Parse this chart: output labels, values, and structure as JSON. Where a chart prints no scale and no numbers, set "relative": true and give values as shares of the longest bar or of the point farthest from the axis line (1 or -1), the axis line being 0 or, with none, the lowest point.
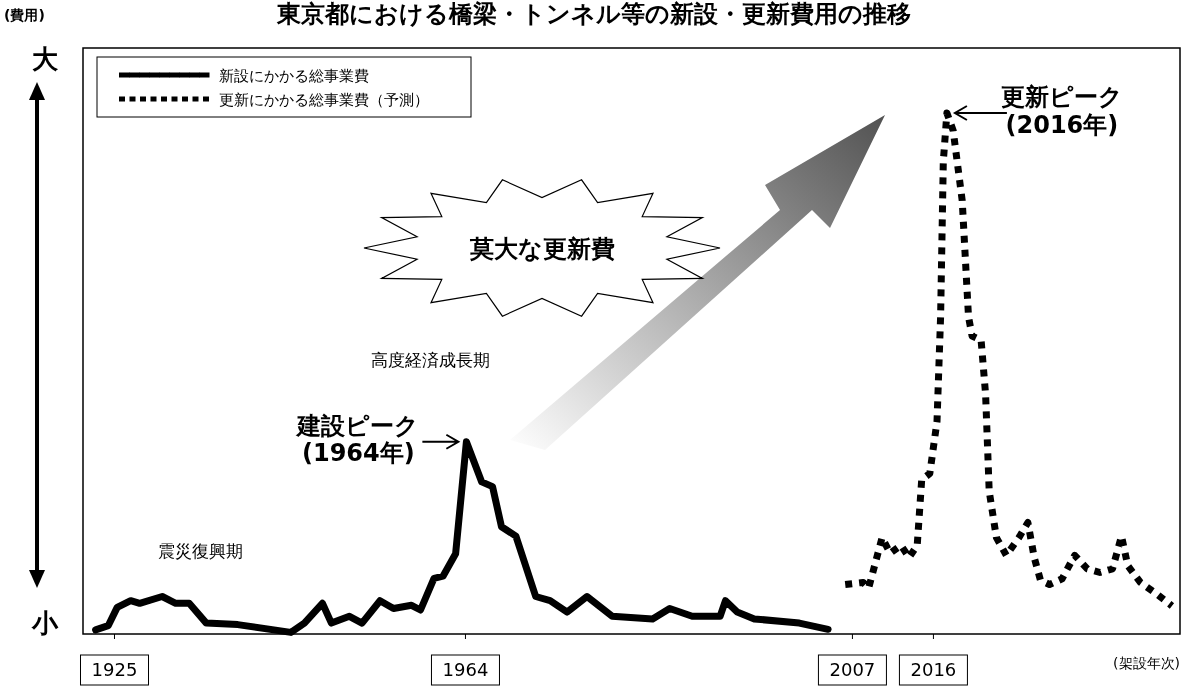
{
  "chart_data": {
    "type": "line",
    "title": "東京都における橋梁・トンネル等の新設・更新費用の推移",
    "xlabel": "(架設年次)",
    "relative": true,
    "legend": "top left",
    "marker": "none",
    "grid": false,
    "xlim": [
      1921.5,
      2043.4
    ],
    "xticks": [
      1925,
      1964,
      2007,
      2016
    ],
    "series": [
      {
        "name": "新設にかかる総事業費",
        "color": "#000000",
        "line_style": "solid",
        "x": [
          1922.9,
          1924.3,
          1925.3,
          1926.8,
          1927.8,
          1930.3,
          1931.8,
          1933.3,
          1935.2,
          1938.7,
          1944.6,
          1946.1,
          1948.1,
          1949.1,
          1951.1,
          1952.5,
          1954.5,
          1956.0,
          1958.0,
          1959.0,
          1960.5,
          1961.5,
          1962.9,
          1964.1,
          1965.8,
          1967.0,
          1968.0,
          1969.6,
          1971.8,
          1973.4,
          1975.3,
          1977.5,
          1980.3,
          1984.8,
          1986.7,
          1989.2,
          1992.3,
          1992.9,
          1994.2,
          1996.1,
          2001.1,
          2004.3
        ],
        "values": [
          0.008,
          0.016,
          0.051,
          0.064,
          0.059,
          0.072,
          0.059,
          0.059,
          0.021,
          0.018,
          0.003,
          0.021,
          0.059,
          0.021,
          0.034,
          0.021,
          0.064,
          0.049,
          0.055,
          0.046,
          0.107,
          0.111,
          0.154,
          0.369,
          0.292,
          0.283,
          0.206,
          0.188,
          0.072,
          0.064,
          0.042,
          0.072,
          0.034,
          0.029,
          0.049,
          0.034,
          0.034,
          0.064,
          0.042,
          0.029,
          0.021,
          0.009
        ]
      },
      {
        "name": "更新にかかる総事業費（予測）",
        "color": "#000000",
        "line_style": "dotted",
        "x": [
          2006.2,
          2008.2,
          2008.8,
          2010.3,
          2011.2,
          2012.4,
          2013.3,
          2014.2,
          2014.7,
          2015.6,
          2016.4,
          2016.8,
          2017.1,
          2017.5,
          2018.2,
          2019.2,
          2019.9,
          2020.3,
          2021.3,
          2021.8,
          2022.2,
          2023.0,
          2024.1,
          2025.5,
          2026.5,
          2027.2,
          2027.9,
          2028.9,
          2030.3,
          2031.7,
          2033.1,
          2034.5,
          2035.9,
          2036.9,
          2037.6,
          2039.0,
          2040.8,
          2042.5
        ],
        "values": [
          0.095,
          0.099,
          0.088,
          0.185,
          0.155,
          0.17,
          0.147,
          0.17,
          0.296,
          0.308,
          0.408,
          0.609,
          0.907,
          1.0,
          0.966,
          0.832,
          0.609,
          0.572,
          0.564,
          0.46,
          0.274,
          0.185,
          0.151,
          0.185,
          0.214,
          0.147,
          0.103,
          0.095,
          0.106,
          0.151,
          0.125,
          0.118,
          0.125,
          0.188,
          0.131,
          0.099,
          0.077,
          0.054
        ]
      }
    ],
    "annotations": [
      {
        "text": "建設ピーク\n(1964年)",
        "x": 1964.1,
        "y": 0.369
      },
      {
        "text": "更新ピーク\n(2016年)",
        "x": 2017.5,
        "y": 1.0
      },
      "莫大な更新費",
      "高度経済成長期",
      "震災復興期",
      "大",
      "小",
      "(費用)"
    ]
  }
}
